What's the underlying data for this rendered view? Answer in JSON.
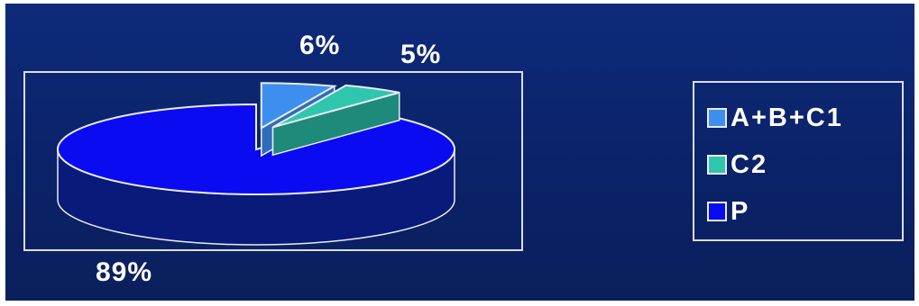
{
  "chart_data": {
    "type": "pie",
    "style": "3d-exploded",
    "categories": [
      "A+B+C1",
      "C2",
      "P"
    ],
    "values": [
      6,
      5,
      89
    ],
    "value_labels": [
      "6%",
      "5%",
      "89%"
    ],
    "colors": [
      "#3e8ef0",
      "#2fc6ae",
      "#0b0bf2"
    ],
    "side_colors": [
      "#2f6dba",
      "#1e8a79",
      "#0a1a7a"
    ],
    "legend": {
      "position": "right",
      "entries": [
        "A+B+C1",
        "C2",
        "P"
      ]
    }
  },
  "background_color": "#0e2a7a"
}
